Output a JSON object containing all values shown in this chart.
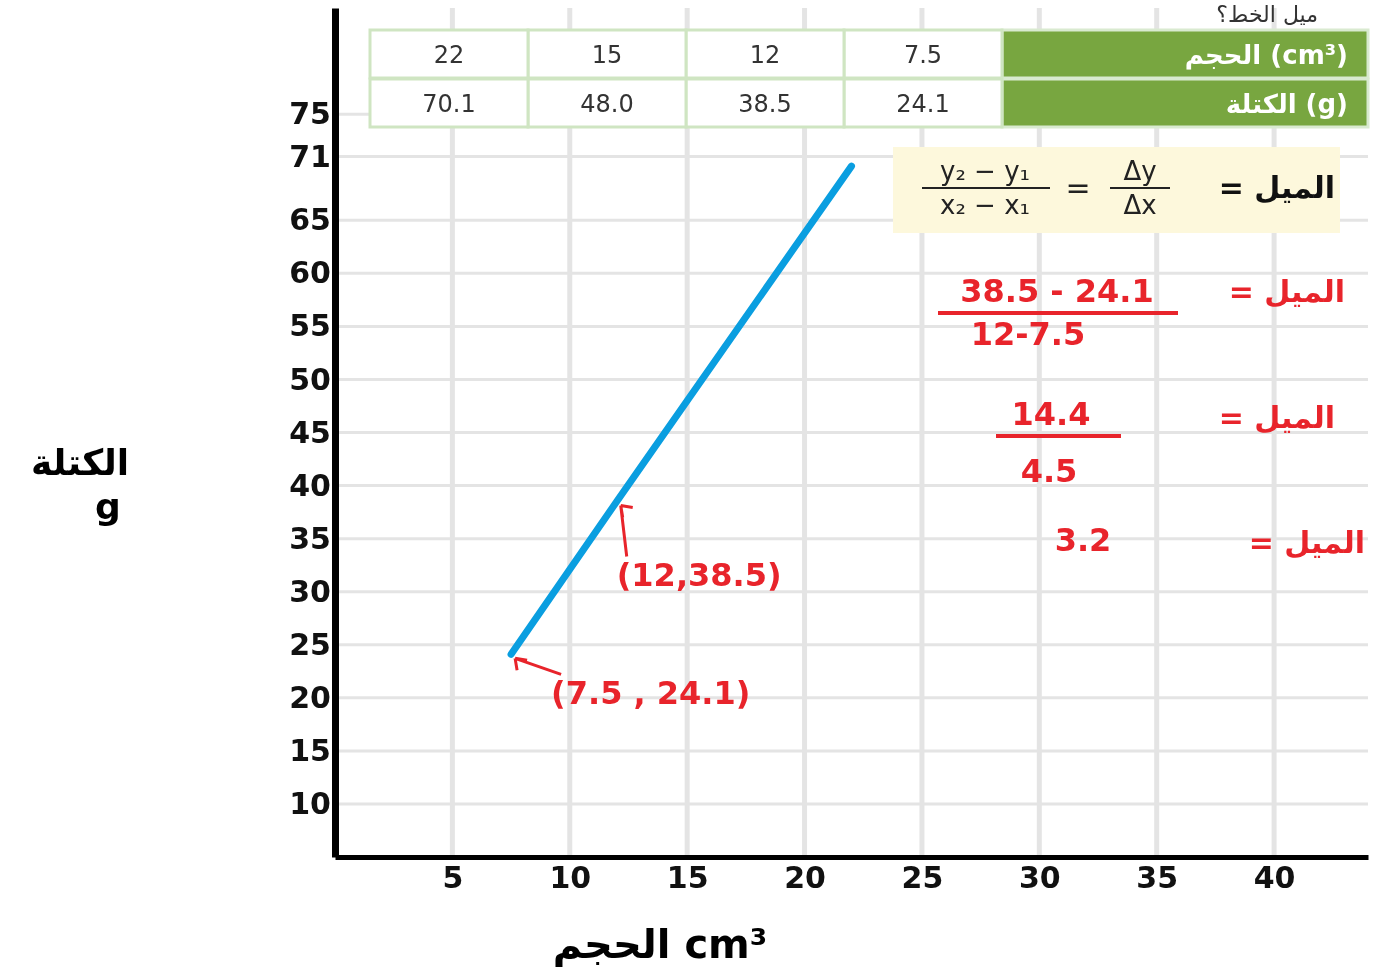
{
  "chart_data": {
    "type": "line",
    "title": "ميل الخط؟",
    "xlabel": "الحجم cm³",
    "ylabel": "الكتلة g",
    "xlim": [
      0,
      44
    ],
    "xticks": [
      5,
      10,
      15,
      20,
      25,
      30,
      35,
      40
    ],
    "ylim": [
      5,
      85
    ],
    "yticks": [
      10,
      15,
      20,
      25,
      30,
      35,
      40,
      45,
      50,
      55,
      60,
      65,
      71,
      75
    ],
    "grid": true,
    "series": [
      {
        "color": "#0a9ee0",
        "x": [
          7.5,
          12,
          15,
          22
        ],
        "values": [
          24.1,
          38.5,
          48.0,
          70.1
        ]
      }
    ],
    "annotations": [
      {
        "text": "(7.5 , 24.1)",
        "x": 7.5,
        "y": 24.1
      },
      {
        "text": "(12,38.5)",
        "x": 12,
        "y": 38.5
      },
      "الحجم (cm³)",
      "الكتلة (g)",
      "الميل =",
      "y₂ − y₁",
      "x₂ − x₁",
      "=",
      "Δy",
      "Δx",
      "الميل =",
      "38.5 - 24.1",
      "12-7.5",
      "الميل =",
      "14.4",
      "4.5",
      "الميل =",
      "3.2",
      "7.5",
      "12",
      "15",
      "22",
      "24.1",
      "38.5",
      "48.0",
      "70.1"
    ]
  }
}
